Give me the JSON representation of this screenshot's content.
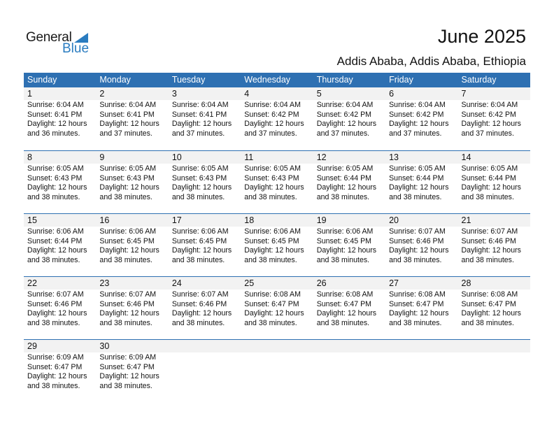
{
  "logo": {
    "text_general": "General",
    "text_blue": "Blue"
  },
  "header": {
    "title": "June 2025",
    "location": "Addis Ababa, Addis Ababa, Ethiopia"
  },
  "colors": {
    "accent": "#2e70b2",
    "date_strip": "#f2f2f2"
  },
  "weekdays": [
    "Sunday",
    "Monday",
    "Tuesday",
    "Wednesday",
    "Thursday",
    "Friday",
    "Saturday"
  ],
  "weeks": [
    [
      {
        "day": "1",
        "sunrise": "Sunrise: 6:04 AM",
        "sunset": "Sunset: 6:41 PM",
        "daylight": "Daylight: 12 hours",
        "minutes": "and 36 minutes."
      },
      {
        "day": "2",
        "sunrise": "Sunrise: 6:04 AM",
        "sunset": "Sunset: 6:41 PM",
        "daylight": "Daylight: 12 hours",
        "minutes": "and 37 minutes."
      },
      {
        "day": "3",
        "sunrise": "Sunrise: 6:04 AM",
        "sunset": "Sunset: 6:41 PM",
        "daylight": "Daylight: 12 hours",
        "minutes": "and 37 minutes."
      },
      {
        "day": "4",
        "sunrise": "Sunrise: 6:04 AM",
        "sunset": "Sunset: 6:42 PM",
        "daylight": "Daylight: 12 hours",
        "minutes": "and 37 minutes."
      },
      {
        "day": "5",
        "sunrise": "Sunrise: 6:04 AM",
        "sunset": "Sunset: 6:42 PM",
        "daylight": "Daylight: 12 hours",
        "minutes": "and 37 minutes."
      },
      {
        "day": "6",
        "sunrise": "Sunrise: 6:04 AM",
        "sunset": "Sunset: 6:42 PM",
        "daylight": "Daylight: 12 hours",
        "minutes": "and 37 minutes."
      },
      {
        "day": "7",
        "sunrise": "Sunrise: 6:04 AM",
        "sunset": "Sunset: 6:42 PM",
        "daylight": "Daylight: 12 hours",
        "minutes": "and 37 minutes."
      }
    ],
    [
      {
        "day": "8",
        "sunrise": "Sunrise: 6:05 AM",
        "sunset": "Sunset: 6:43 PM",
        "daylight": "Daylight: 12 hours",
        "minutes": "and 38 minutes."
      },
      {
        "day": "9",
        "sunrise": "Sunrise: 6:05 AM",
        "sunset": "Sunset: 6:43 PM",
        "daylight": "Daylight: 12 hours",
        "minutes": "and 38 minutes."
      },
      {
        "day": "10",
        "sunrise": "Sunrise: 6:05 AM",
        "sunset": "Sunset: 6:43 PM",
        "daylight": "Daylight: 12 hours",
        "minutes": "and 38 minutes."
      },
      {
        "day": "11",
        "sunrise": "Sunrise: 6:05 AM",
        "sunset": "Sunset: 6:43 PM",
        "daylight": "Daylight: 12 hours",
        "minutes": "and 38 minutes."
      },
      {
        "day": "12",
        "sunrise": "Sunrise: 6:05 AM",
        "sunset": "Sunset: 6:44 PM",
        "daylight": "Daylight: 12 hours",
        "minutes": "and 38 minutes."
      },
      {
        "day": "13",
        "sunrise": "Sunrise: 6:05 AM",
        "sunset": "Sunset: 6:44 PM",
        "daylight": "Daylight: 12 hours",
        "minutes": "and 38 minutes."
      },
      {
        "day": "14",
        "sunrise": "Sunrise: 6:05 AM",
        "sunset": "Sunset: 6:44 PM",
        "daylight": "Daylight: 12 hours",
        "minutes": "and 38 minutes."
      }
    ],
    [
      {
        "day": "15",
        "sunrise": "Sunrise: 6:06 AM",
        "sunset": "Sunset: 6:44 PM",
        "daylight": "Daylight: 12 hours",
        "minutes": "and 38 minutes."
      },
      {
        "day": "16",
        "sunrise": "Sunrise: 6:06 AM",
        "sunset": "Sunset: 6:45 PM",
        "daylight": "Daylight: 12 hours",
        "minutes": "and 38 minutes."
      },
      {
        "day": "17",
        "sunrise": "Sunrise: 6:06 AM",
        "sunset": "Sunset: 6:45 PM",
        "daylight": "Daylight: 12 hours",
        "minutes": "and 38 minutes."
      },
      {
        "day": "18",
        "sunrise": "Sunrise: 6:06 AM",
        "sunset": "Sunset: 6:45 PM",
        "daylight": "Daylight: 12 hours",
        "minutes": "and 38 minutes."
      },
      {
        "day": "19",
        "sunrise": "Sunrise: 6:06 AM",
        "sunset": "Sunset: 6:45 PM",
        "daylight": "Daylight: 12 hours",
        "minutes": "and 38 minutes."
      },
      {
        "day": "20",
        "sunrise": "Sunrise: 6:07 AM",
        "sunset": "Sunset: 6:46 PM",
        "daylight": "Daylight: 12 hours",
        "minutes": "and 38 minutes."
      },
      {
        "day": "21",
        "sunrise": "Sunrise: 6:07 AM",
        "sunset": "Sunset: 6:46 PM",
        "daylight": "Daylight: 12 hours",
        "minutes": "and 38 minutes."
      }
    ],
    [
      {
        "day": "22",
        "sunrise": "Sunrise: 6:07 AM",
        "sunset": "Sunset: 6:46 PM",
        "daylight": "Daylight: 12 hours",
        "minutes": "and 38 minutes."
      },
      {
        "day": "23",
        "sunrise": "Sunrise: 6:07 AM",
        "sunset": "Sunset: 6:46 PM",
        "daylight": "Daylight: 12 hours",
        "minutes": "and 38 minutes."
      },
      {
        "day": "24",
        "sunrise": "Sunrise: 6:07 AM",
        "sunset": "Sunset: 6:46 PM",
        "daylight": "Daylight: 12 hours",
        "minutes": "and 38 minutes."
      },
      {
        "day": "25",
        "sunrise": "Sunrise: 6:08 AM",
        "sunset": "Sunset: 6:47 PM",
        "daylight": "Daylight: 12 hours",
        "minutes": "and 38 minutes."
      },
      {
        "day": "26",
        "sunrise": "Sunrise: 6:08 AM",
        "sunset": "Sunset: 6:47 PM",
        "daylight": "Daylight: 12 hours",
        "minutes": "and 38 minutes."
      },
      {
        "day": "27",
        "sunrise": "Sunrise: 6:08 AM",
        "sunset": "Sunset: 6:47 PM",
        "daylight": "Daylight: 12 hours",
        "minutes": "and 38 minutes."
      },
      {
        "day": "28",
        "sunrise": "Sunrise: 6:08 AM",
        "sunset": "Sunset: 6:47 PM",
        "daylight": "Daylight: 12 hours",
        "minutes": "and 38 minutes."
      }
    ],
    [
      {
        "day": "29",
        "sunrise": "Sunrise: 6:09 AM",
        "sunset": "Sunset: 6:47 PM",
        "daylight": "Daylight: 12 hours",
        "minutes": "and 38 minutes."
      },
      {
        "day": "30",
        "sunrise": "Sunrise: 6:09 AM",
        "sunset": "Sunset: 6:47 PM",
        "daylight": "Daylight: 12 hours",
        "minutes": "and 38 minutes."
      },
      null,
      null,
      null,
      null,
      null
    ]
  ]
}
